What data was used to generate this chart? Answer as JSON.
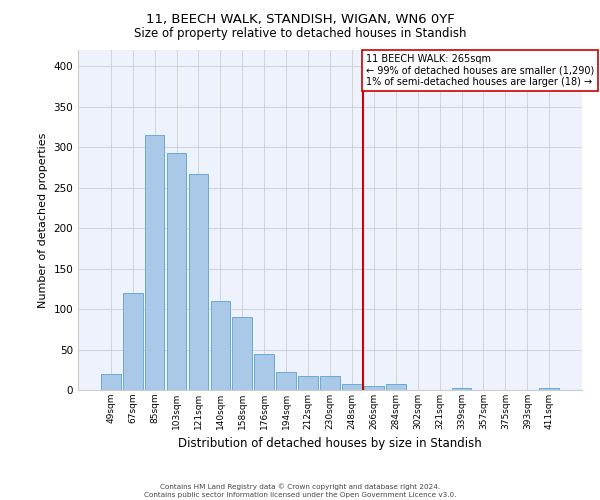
{
  "title1": "11, BEECH WALK, STANDISH, WIGAN, WN6 0YF",
  "title2": "Size of property relative to detached houses in Standish",
  "xlabel": "Distribution of detached houses by size in Standish",
  "ylabel": "Number of detached properties",
  "bar_labels": [
    "49sqm",
    "67sqm",
    "85sqm",
    "103sqm",
    "121sqm",
    "140sqm",
    "158sqm",
    "176sqm",
    "194sqm",
    "212sqm",
    "230sqm",
    "248sqm",
    "266sqm",
    "284sqm",
    "302sqm",
    "321sqm",
    "339sqm",
    "357sqm",
    "375sqm",
    "393sqm",
    "411sqm"
  ],
  "bar_values": [
    20,
    120,
    315,
    293,
    267,
    110,
    90,
    44,
    22,
    17,
    17,
    8,
    5,
    8,
    0,
    0,
    2,
    0,
    0,
    0,
    2
  ],
  "bar_color": "#aac8e8",
  "bar_edge_color": "#6aaad4",
  "vline_index": 12,
  "vline_color": "#cc0000",
  "annotation_text": "11 BEECH WALK: 265sqm\n← 99% of detached houses are smaller (1,290)\n1% of semi-detached houses are larger (18) →",
  "annotation_box_color": "#ffffff",
  "annotation_border_color": "#cc0000",
  "ylim": [
    0,
    420
  ],
  "yticks": [
    0,
    50,
    100,
    150,
    200,
    250,
    300,
    350,
    400
  ],
  "background_color": "#ffffff",
  "plot_bg_color": "#eef2fc",
  "footer_text": "Contains HM Land Registry data © Crown copyright and database right 2024.\nContains public sector information licensed under the Open Government Licence v3.0.",
  "grid_color": "#cccccc"
}
